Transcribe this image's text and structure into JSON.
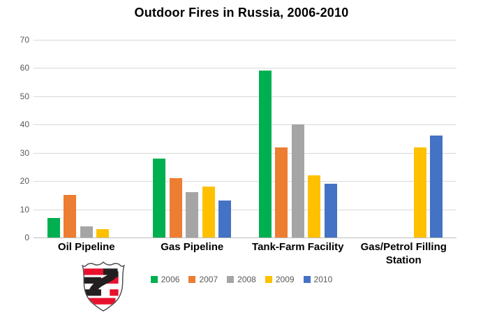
{
  "chart_data": {
    "type": "bar",
    "title": "Outdoor Fires in Russia, 2006-2010",
    "categories": [
      "Oil Pipeline",
      "Gas Pipeline",
      "Tank-Farm Facility",
      "Gas/Petrol Filling Station"
    ],
    "series": [
      {
        "name": "2006",
        "color": "#00B050",
        "values": [
          7,
          28,
          59,
          0
        ]
      },
      {
        "name": "2007",
        "color": "#ED7D31",
        "values": [
          15,
          21,
          32,
          0
        ]
      },
      {
        "name": "2008",
        "color": "#A5A5A5",
        "values": [
          4,
          16,
          40,
          0
        ]
      },
      {
        "name": "2009",
        "color": "#FFC000",
        "values": [
          3,
          18,
          22,
          32
        ]
      },
      {
        "name": "2010",
        "color": "#4472C4",
        "values": [
          0,
          13,
          19,
          36
        ]
      }
    ],
    "xlabel": "",
    "ylabel": "",
    "ylim": [
      0,
      70
    ],
    "yticks": [
      0,
      10,
      20,
      30,
      40,
      50,
      60,
      70
    ],
    "grid": true,
    "legend_position": "bottom"
  },
  "styles": {
    "background": "#ffffff",
    "gridline_color": "#d9d9d9",
    "axis_line_color": "#bfbfbf",
    "tick_label_color": "#595959",
    "legend_text_color": "#595959",
    "title_color": "#000000",
    "category_label_color": "#000000"
  },
  "logo": {
    "name": "shield-emblem",
    "colors": {
      "red": "#e8112d",
      "black": "#231f20",
      "outline": "#4b4b4b",
      "field": "#ffffff"
    }
  }
}
